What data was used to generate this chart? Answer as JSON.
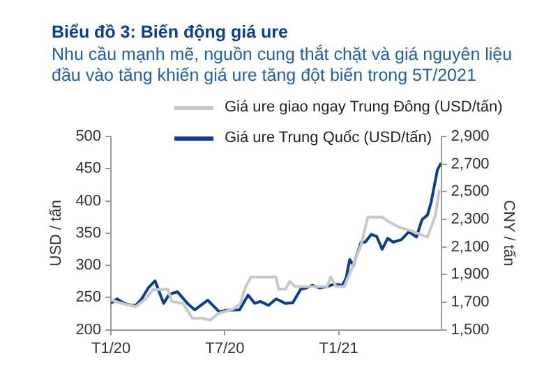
{
  "chart_data": {
    "type": "line",
    "title": "Biểu đồ 3: Biến động giá ure",
    "subtitle": "Nhu cầu mạnh mẽ, nguồn cung thắt chặt và giá nguyên liệu đầu vào tăng khiến giá ure tăng đột biến trong 5T/2021",
    "ylabel": "USD / tấn",
    "y2label": "CNY / tấn",
    "legend": "top",
    "grid": false,
    "marker": "none",
    "line_style": "solid",
    "xlim": [
      "2020-01-01",
      "2021-06-13"
    ],
    "xticks": [
      {
        "value": "2020-01-01",
        "label": "T1/20"
      },
      {
        "value": "2020-07-01",
        "label": "T7/20"
      },
      {
        "value": "2021-01-01",
        "label": "T1/21"
      }
    ],
    "ylim": [
      200,
      500
    ],
    "yticks": [
      200,
      250,
      300,
      350,
      400,
      450,
      500
    ],
    "y2lim": [
      1500,
      2900
    ],
    "y2ticks": [
      {
        "value": 1500,
        "label": "1,500"
      },
      {
        "value": 1700,
        "label": "1,700"
      },
      {
        "value": 1900,
        "label": "1,900"
      },
      {
        "value": 2100,
        "label": "2,100"
      },
      {
        "value": 2300,
        "label": "2,300"
      },
      {
        "value": 2500,
        "label": "2,500"
      },
      {
        "value": 2700,
        "label": "2,700"
      },
      {
        "value": 2900,
        "label": "2,900"
      }
    ],
    "series": [
      {
        "name": "Giá ure giao ngay Trung Đông (USD/tấn)",
        "color": "#c8c8c8",
        "x": [
          "2020-01-01",
          "2020-01-23",
          "2020-02-10",
          "2020-02-25",
          "2020-03-07",
          "2020-04-01",
          "2020-04-07",
          "2020-04-25",
          "2020-05-10",
          "2020-05-26",
          "2020-06-08",
          "2020-06-20",
          "2020-07-14",
          "2020-07-26",
          "2020-08-04",
          "2020-08-13",
          "2020-09-22",
          "2020-09-26",
          "2020-10-07",
          "2020-10-14",
          "2020-10-23",
          "2020-12-13",
          "2020-12-19",
          "2020-12-28",
          "2021-01-10",
          "2021-01-25",
          "2021-02-06",
          "2021-02-16",
          "2021-03-10",
          "2021-03-22",
          "2021-04-07",
          "2021-04-25",
          "2021-05-10",
          "2021-05-22",
          "2021-06-04",
          "2021-06-10"
        ],
        "values": [
          246,
          240,
          236,
          248,
          262,
          263,
          244,
          241,
          218,
          218,
          215,
          225,
          232,
          240,
          267,
          282,
          282,
          263,
          263,
          275,
          267,
          267,
          282,
          267,
          267,
          301,
          332,
          375,
          375,
          367,
          359,
          354,
          348,
          344,
          378,
          417
        ]
      },
      {
        "name": "Giá ure Trung Quốc (USD/tấn)",
        "color": "#0b3d91",
        "x": [
          "2020-01-01",
          "2020-01-11",
          "2020-01-23",
          "2020-02-03",
          "2020-02-10",
          "2020-02-19",
          "2020-02-29",
          "2020-03-11",
          "2020-03-25",
          "2020-04-03",
          "2020-04-16",
          "2020-05-02",
          "2020-05-14",
          "2020-06-04",
          "2020-06-22",
          "2020-07-02",
          "2020-07-25",
          "2020-08-08",
          "2020-08-19",
          "2020-08-28",
          "2020-09-10",
          "2020-09-22",
          "2020-10-07",
          "2020-10-19",
          "2020-11-01",
          "2020-11-10",
          "2020-11-19",
          "2020-12-01",
          "2020-12-13",
          "2020-12-25",
          "2021-01-07",
          "2021-01-13",
          "2021-01-19",
          "2021-01-25",
          "2021-02-06",
          "2021-02-12",
          "2021-02-21",
          "2021-03-01",
          "2021-03-10",
          "2021-03-19",
          "2021-03-28",
          "2021-04-10",
          "2021-04-22",
          "2021-05-04",
          "2021-05-13",
          "2021-05-22",
          "2021-05-28",
          "2021-06-07",
          "2021-06-13"
        ],
        "values": [
          241,
          248,
          241,
          238,
          238,
          248,
          265,
          276,
          241,
          255,
          259,
          241,
          231,
          246,
          228,
          230,
          231,
          254,
          241,
          244,
          238,
          248,
          241,
          242,
          263,
          265,
          269,
          265,
          267,
          271,
          269,
          280,
          309,
          300,
          336,
          336,
          348,
          345,
          325,
          342,
          336,
          340,
          352,
          344,
          371,
          378,
          398,
          448,
          459
        ]
      }
    ]
  }
}
